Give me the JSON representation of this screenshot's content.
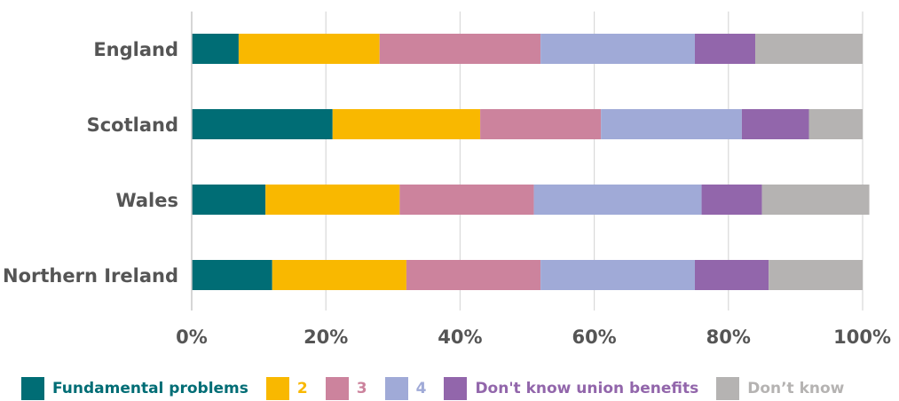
{
  "chart_data": {
    "type": "bar",
    "orientation": "horizontal",
    "stacked": true,
    "title": "",
    "xlabel": "",
    "ylabel": "",
    "categories": [
      "England",
      "Scotland",
      "Wales",
      "Northern Ireland"
    ],
    "series": [
      {
        "name": "Fundamental problems",
        "color": "#006D75",
        "values": [
          7,
          21,
          11,
          12
        ]
      },
      {
        "name": "2",
        "color": "#F9B800",
        "values": [
          21,
          22,
          20,
          20
        ]
      },
      {
        "name": "3",
        "color": "#CC839D",
        "values": [
          24,
          18,
          20,
          20
        ]
      },
      {
        "name": "4",
        "color": "#A0AAD7",
        "values": [
          23,
          21,
          25,
          23
        ]
      },
      {
        "name": "Don't know union benefits",
        "color": "#9266AB",
        "values": [
          9,
          10,
          9,
          11
        ]
      },
      {
        "name": "Don’t know",
        "color": "#B5B3B2",
        "values": [
          16,
          8,
          16,
          14
        ]
      }
    ],
    "xlim": [
      0,
      100
    ],
    "xticks": [
      "0%",
      "20%",
      "40%",
      "60%",
      "80%",
      "100%"
    ],
    "grid": true,
    "legend": "bottom"
  }
}
